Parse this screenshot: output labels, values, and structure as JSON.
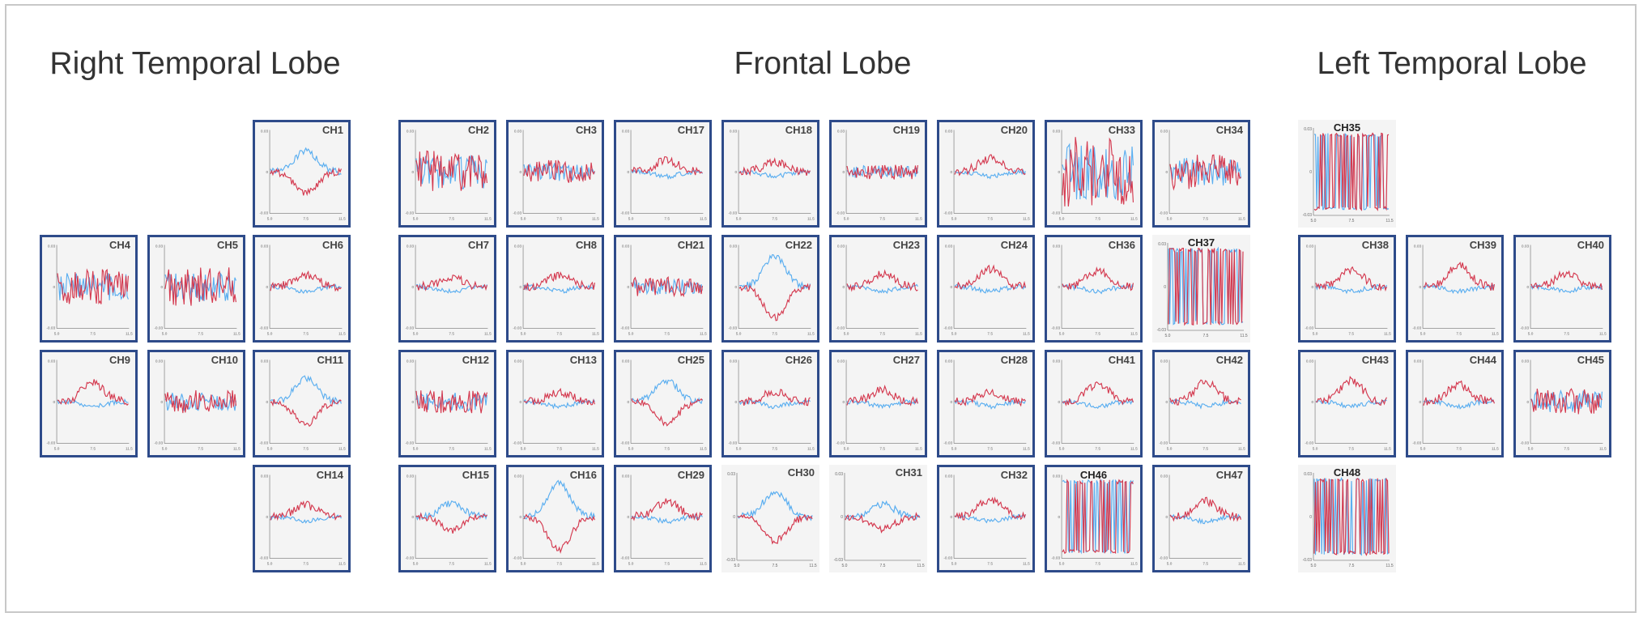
{
  "regions": [
    {
      "title": "Right Temporal Lobe"
    },
    {
      "title": "Frontal Lobe"
    },
    {
      "title": "Left Temporal Lobe"
    }
  ],
  "colors": {
    "series_a": "#d4394f",
    "series_b": "#5aaef0",
    "border": "#2e4b8a",
    "panel_bg": "#f4f4f4"
  },
  "chart_data": {
    "type": "line",
    "panel_type": "small multiples",
    "xlim": [
      5.0,
      11.5
    ],
    "x_ticks": [
      "5.0",
      "7.5",
      "11.5"
    ],
    "ylim": [
      -0.03,
      0.03
    ],
    "y_ticks": [
      "0.03",
      "0",
      "-0.03"
    ],
    "series_colors": [
      "#d4394f",
      "#5aaef0"
    ],
    "channels": [
      {
        "label": "CH1",
        "region": "Right Temporal Lobe",
        "boxed": true,
        "shape": "flip",
        "amp": 0.55,
        "noisy": false
      },
      {
        "label": "CH2",
        "region": "Frontal Lobe",
        "boxed": true,
        "shape": "noisy",
        "amp": 0.55,
        "noisy": false
      },
      {
        "label": "CH3",
        "region": "Frontal Lobe",
        "boxed": true,
        "shape": "noisy",
        "amp": 0.3,
        "noisy": false
      },
      {
        "label": "CH17",
        "region": "Frontal Lobe",
        "boxed": true,
        "shape": "bump",
        "amp": 0.3,
        "noisy": false
      },
      {
        "label": "CH18",
        "region": "Frontal Lobe",
        "boxed": true,
        "shape": "bump",
        "amp": 0.25,
        "noisy": false
      },
      {
        "label": "CH19",
        "region": "Frontal Lobe",
        "boxed": true,
        "shape": "noisy",
        "amp": 0.2,
        "noisy": false
      },
      {
        "label": "CH20",
        "region": "Frontal Lobe",
        "boxed": true,
        "shape": "bump",
        "amp": 0.35,
        "noisy": false
      },
      {
        "label": "CH33",
        "region": "Frontal Lobe",
        "boxed": true,
        "shape": "noisy",
        "amp": 0.9,
        "noisy": false
      },
      {
        "label": "CH34",
        "region": "Frontal Lobe",
        "boxed": true,
        "shape": "noisy",
        "amp": 0.45,
        "noisy": false
      },
      {
        "label": "CH35",
        "region": "Left Temporal Lobe",
        "boxed": false,
        "shape": "saturated",
        "amp": 1.0,
        "noisy": true
      },
      {
        "label": "CH4",
        "region": "Right Temporal Lobe",
        "boxed": true,
        "shape": "noisy",
        "amp": 0.45,
        "noisy": false
      },
      {
        "label": "CH5",
        "region": "Right Temporal Lobe",
        "boxed": true,
        "shape": "noisy",
        "amp": 0.5,
        "noisy": false
      },
      {
        "label": "CH6",
        "region": "Right Temporal Lobe",
        "boxed": true,
        "shape": "bump",
        "amp": 0.3,
        "noisy": false
      },
      {
        "label": "CH7",
        "region": "Frontal Lobe",
        "boxed": true,
        "shape": "bump",
        "amp": 0.25,
        "noisy": false
      },
      {
        "label": "CH8",
        "region": "Frontal Lobe",
        "boxed": true,
        "shape": "bump",
        "amp": 0.3,
        "noisy": false
      },
      {
        "label": "CH21",
        "region": "Frontal Lobe",
        "boxed": true,
        "shape": "noisy",
        "amp": 0.25,
        "noisy": false
      },
      {
        "label": "CH22",
        "region": "Frontal Lobe",
        "boxed": true,
        "shape": "flip",
        "amp": 0.8,
        "noisy": false
      },
      {
        "label": "CH23",
        "region": "Frontal Lobe",
        "boxed": true,
        "shape": "bump",
        "amp": 0.35,
        "noisy": false
      },
      {
        "label": "CH24",
        "region": "Frontal Lobe",
        "boxed": true,
        "shape": "bump",
        "amp": 0.45,
        "noisy": false
      },
      {
        "label": "CH36",
        "region": "Frontal Lobe",
        "boxed": true,
        "shape": "bump",
        "amp": 0.4,
        "noisy": false
      },
      {
        "label": "CH37",
        "region": "Frontal Lobe",
        "boxed": false,
        "shape": "saturated",
        "amp": 1.0,
        "noisy": true
      },
      {
        "label": "CH38",
        "region": "Left Temporal Lobe",
        "boxed": true,
        "shape": "bump",
        "amp": 0.45,
        "noisy": false
      },
      {
        "label": "CH39",
        "region": "Left Temporal Lobe",
        "boxed": true,
        "shape": "bump",
        "amp": 0.55,
        "noisy": false
      },
      {
        "label": "CH40",
        "region": "Left Temporal Lobe",
        "boxed": true,
        "shape": "bump",
        "amp": 0.35,
        "noisy": false
      },
      {
        "label": "CH9",
        "region": "Right Temporal Lobe",
        "boxed": true,
        "shape": "bump",
        "amp": 0.5,
        "noisy": false
      },
      {
        "label": "CH10",
        "region": "Right Temporal Lobe",
        "boxed": true,
        "shape": "noisy",
        "amp": 0.3,
        "noisy": false
      },
      {
        "label": "CH11",
        "region": "Right Temporal Lobe",
        "boxed": true,
        "shape": "flip",
        "amp": 0.6,
        "noisy": false
      },
      {
        "label": "CH12",
        "region": "Frontal Lobe",
        "boxed": true,
        "shape": "noisy",
        "amp": 0.3,
        "noisy": false
      },
      {
        "label": "CH13",
        "region": "Frontal Lobe",
        "boxed": true,
        "shape": "bump",
        "amp": 0.25,
        "noisy": false
      },
      {
        "label": "CH25",
        "region": "Frontal Lobe",
        "boxed": true,
        "shape": "flip",
        "amp": 0.55,
        "noisy": false
      },
      {
        "label": "CH26",
        "region": "Frontal Lobe",
        "boxed": true,
        "shape": "bump",
        "amp": 0.25,
        "noisy": false
      },
      {
        "label": "CH27",
        "region": "Frontal Lobe",
        "boxed": true,
        "shape": "bump",
        "amp": 0.3,
        "noisy": false
      },
      {
        "label": "CH28",
        "region": "Frontal Lobe",
        "boxed": true,
        "shape": "bump",
        "amp": 0.25,
        "noisy": false
      },
      {
        "label": "CH41",
        "region": "Frontal Lobe",
        "boxed": true,
        "shape": "bump",
        "amp": 0.45,
        "noisy": false
      },
      {
        "label": "CH42",
        "region": "Frontal Lobe",
        "boxed": true,
        "shape": "bump",
        "amp": 0.5,
        "noisy": false
      },
      {
        "label": "CH43",
        "region": "Left Temporal Lobe",
        "boxed": true,
        "shape": "bump",
        "amp": 0.55,
        "noisy": false
      },
      {
        "label": "CH44",
        "region": "Left Temporal Lobe",
        "boxed": true,
        "shape": "bump",
        "amp": 0.45,
        "noisy": false
      },
      {
        "label": "CH45",
        "region": "Left Temporal Lobe",
        "boxed": true,
        "shape": "noisy",
        "amp": 0.35,
        "noisy": false
      },
      {
        "label": "CH14",
        "region": "Right Temporal Lobe",
        "boxed": true,
        "shape": "bump",
        "amp": 0.3,
        "noisy": false
      },
      {
        "label": "CH15",
        "region": "Frontal Lobe",
        "boxed": true,
        "shape": "flip",
        "amp": 0.35,
        "noisy": false
      },
      {
        "label": "CH16",
        "region": "Frontal Lobe",
        "boxed": true,
        "shape": "flip",
        "amp": 0.85,
        "noisy": false
      },
      {
        "label": "CH29",
        "region": "Frontal Lobe",
        "boxed": true,
        "shape": "bump",
        "amp": 0.4,
        "noisy": false
      },
      {
        "label": "CH30",
        "region": "Frontal Lobe",
        "boxed": false,
        "shape": "flip",
        "amp": 0.6,
        "noisy": false
      },
      {
        "label": "CH31",
        "region": "Frontal Lobe",
        "boxed": false,
        "shape": "flip",
        "amp": 0.3,
        "noisy": false
      },
      {
        "label": "CH32",
        "region": "Frontal Lobe",
        "boxed": true,
        "shape": "bump",
        "amp": 0.45,
        "noisy": false
      },
      {
        "label": "CH46",
        "region": "Frontal Lobe",
        "boxed": true,
        "shape": "saturated",
        "amp": 1.0,
        "noisy": true
      },
      {
        "label": "CH47",
        "region": "Frontal Lobe",
        "boxed": true,
        "shape": "bump",
        "amp": 0.4,
        "noisy": false
      },
      {
        "label": "CH48",
        "region": "Left Temporal Lobe",
        "boxed": false,
        "shape": "saturated",
        "amp": 1.0,
        "noisy": true
      }
    ]
  }
}
